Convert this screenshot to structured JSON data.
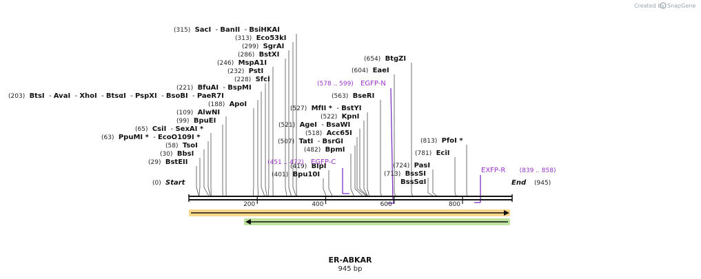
{
  "credit": {
    "prefix": "Created by",
    "brand": "SnapGene"
  },
  "sequence": {
    "name": "ER-ABKAR",
    "length_label": "945 bp",
    "length": 945
  },
  "ends": {
    "start_pos": "(0)",
    "start_label": "Start",
    "end_pos": "(945)",
    "end_label": "End"
  },
  "ruler": {
    "ticks": [
      {
        "value": 200,
        "label": "200"
      },
      {
        "value": 400,
        "label": "400"
      },
      {
        "value": 600,
        "label": "600"
      },
      {
        "value": 800,
        "label": "800"
      }
    ]
  },
  "colors": {
    "feature_text": "#9a32c9",
    "fwd_arrow": "#f5a623",
    "rev_arrow": "#74c043",
    "backbone": "#111111"
  },
  "arrows": [
    {
      "name": "forward-orf",
      "start": 0,
      "end": 945,
      "direction": "forward"
    },
    {
      "name": "reverse-orf",
      "start": 165,
      "end": 945,
      "direction": "reverse"
    }
  ],
  "features": [
    {
      "name": "EGFP-N",
      "range": "(578 .. 599)",
      "pos": 593
    },
    {
      "name": "EGFP-C",
      "range": "(451 .. 472)",
      "pos": 451
    },
    {
      "name": "EXFP-R",
      "range": "(839 .. 858)",
      "pos": 858
    }
  ],
  "left_rows": [
    {
      "site": 315,
      "items": [
        {
          "pos": "(315)",
          "name": "SacI"
        },
        {
          "sep": " - ",
          "name": "BanII"
        },
        {
          "sep": " - ",
          "name": "BsiHKAI"
        }
      ]
    },
    {
      "site": 313,
      "items": [
        {
          "pos": "(313)",
          "name": "Eco53kI"
        }
      ]
    },
    {
      "site": 299,
      "items": [
        {
          "pos": "(299)",
          "name": "SgrAI"
        }
      ]
    },
    {
      "site": 286,
      "items": [
        {
          "pos": "(286)",
          "name": "BstXI"
        }
      ]
    },
    {
      "site": 246,
      "items": [
        {
          "pos": "(246)",
          "name": "MspA1I"
        }
      ]
    },
    {
      "site": 232,
      "items": [
        {
          "pos": "(232)",
          "name": "PstI"
        }
      ]
    },
    {
      "site": 228,
      "items": [
        {
          "pos": "(228)",
          "name": "SfcI"
        }
      ]
    },
    {
      "site": 221,
      "items": [
        {
          "pos": "(221)",
          "name": "BfuAI"
        },
        {
          "sep": " - ",
          "name": "BspMI"
        }
      ]
    },
    {
      "site": 203,
      "items": [
        {
          "pos": "(203)",
          "name": "BtsI"
        },
        {
          "sep": " - ",
          "name": "AvaI"
        },
        {
          "sep": " - ",
          "name": "XhoI"
        },
        {
          "sep": " - ",
          "name": "BtsαI"
        },
        {
          "sep": " - ",
          "name": "PspXI"
        },
        {
          "sep": " - ",
          "name": "BsoBI"
        },
        {
          "sep": " - ",
          "name": "PaeR7I"
        }
      ]
    },
    {
      "site": 188,
      "items": [
        {
          "pos": "(188)",
          "name": "ApoI"
        }
      ]
    },
    {
      "site": 109,
      "items": [
        {
          "pos": "(109)",
          "name": "AlwNI"
        }
      ]
    },
    {
      "site": 99,
      "items": [
        {
          "pos": "(99)",
          "name": "BpuEI"
        }
      ]
    },
    {
      "site": 65,
      "items": [
        {
          "pos": "(65)",
          "name": "CsiI"
        },
        {
          "sep": " - ",
          "name": "SexAI *"
        }
      ]
    },
    {
      "site": 63,
      "items": [
        {
          "pos": "(63)",
          "name": "PpuMI *"
        },
        {
          "sep": " - ",
          "name": "EcoO109I *"
        }
      ]
    },
    {
      "site": 58,
      "items": [
        {
          "pos": "(58)",
          "name": "TsoI"
        }
      ]
    },
    {
      "site": 30,
      "items": [
        {
          "pos": "(30)",
          "name": "BbsI"
        }
      ]
    },
    {
      "site": 29,
      "items": [
        {
          "pos": "(29)",
          "name": "BstEII"
        }
      ]
    }
  ],
  "mid_rows": [
    {
      "site": 527,
      "items": [
        {
          "pos": "(527)",
          "name": "MfII *"
        },
        {
          "sep": " - ",
          "name": "BstYI"
        }
      ]
    },
    {
      "site": 522,
      "items": [
        {
          "pos": "(522)",
          "name": "KpnI"
        }
      ]
    },
    {
      "site": 521,
      "items": [
        {
          "pos": "(521)",
          "name": "AgeI"
        },
        {
          "sep": " - ",
          "name": "BsaWI"
        }
      ]
    },
    {
      "site": 518,
      "items": [
        {
          "pos": "(518)",
          "name": "Acc65I"
        }
      ]
    },
    {
      "site": 507,
      "items": [
        {
          "pos": "(507)",
          "name": "TatI"
        },
        {
          "sep": " - ",
          "name": "BsrGI"
        }
      ]
    },
    {
      "site": 482,
      "items": [
        {
          "pos": "(482)",
          "name": "BpmI"
        }
      ]
    },
    {
      "site": 419,
      "items": [
        {
          "pos": "(419)",
          "name": "BlpI"
        }
      ]
    },
    {
      "site": 401,
      "items": [
        {
          "pos": "(401)",
          "name": "Bpu10I"
        }
      ]
    }
  ],
  "right_rows": [
    {
      "site": 654,
      "items": [
        {
          "pos": "(654)",
          "name": "BtgZI"
        }
      ]
    },
    {
      "site": 604,
      "items": [
        {
          "pos": "(604)",
          "name": "EaeI"
        }
      ]
    },
    {
      "site": 563,
      "items": [
        {
          "pos": "(563)",
          "name": "BseRI"
        }
      ]
    },
    {
      "site": 813,
      "items": [
        {
          "pos": "(813)",
          "name": "PfoI *"
        }
      ]
    },
    {
      "site": 781,
      "items": [
        {
          "pos": "(781)",
          "name": "EciI"
        }
      ]
    },
    {
      "site": 724,
      "items": [
        {
          "pos": "(724)",
          "name": "PasI"
        }
      ]
    },
    {
      "site": 713,
      "items": [
        {
          "pos": "(713)",
          "name": "BssSI"
        }
      ]
    },
    {
      "site": 713,
      "items": [
        {
          "name": "BssSαI"
        }
      ]
    }
  ]
}
